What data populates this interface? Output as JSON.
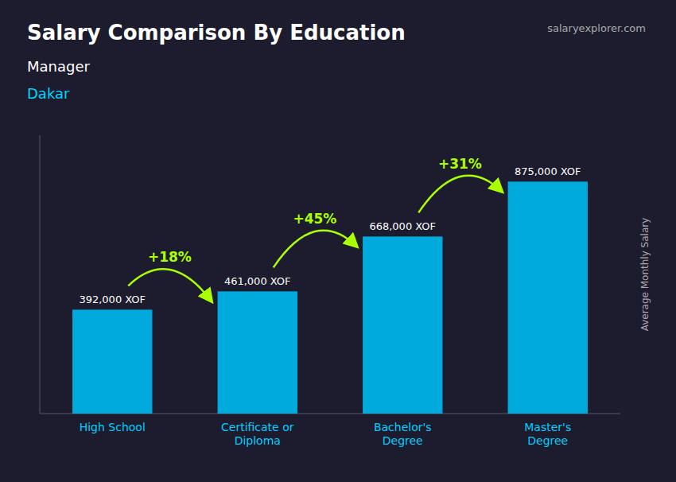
{
  "chart_data": {
    "type": "bar",
    "title": "Salary Comparison By Education",
    "subtitle": [
      "Manager",
      "Dakar"
    ],
    "source": "salaryexplorer.com",
    "ylabel": "Average Monthly Salary",
    "categories": [
      "High School",
      "Certificate or\nDiploma",
      "Bachelor's\nDegree",
      "Master's\nDegree"
    ],
    "values": [
      392000,
      461000,
      668000,
      875000
    ],
    "value_labels": [
      "392,000 XOF",
      "461,000 XOF",
      "668,000 XOF",
      "875,000 XOF"
    ],
    "annotations": [
      "+18%",
      "+45%",
      "+31%"
    ],
    "color": "#00aadd",
    "ylim": [
      0,
      1050000
    ],
    "data_labels": true,
    "tick_labels": "x",
    "grid": false
  }
}
